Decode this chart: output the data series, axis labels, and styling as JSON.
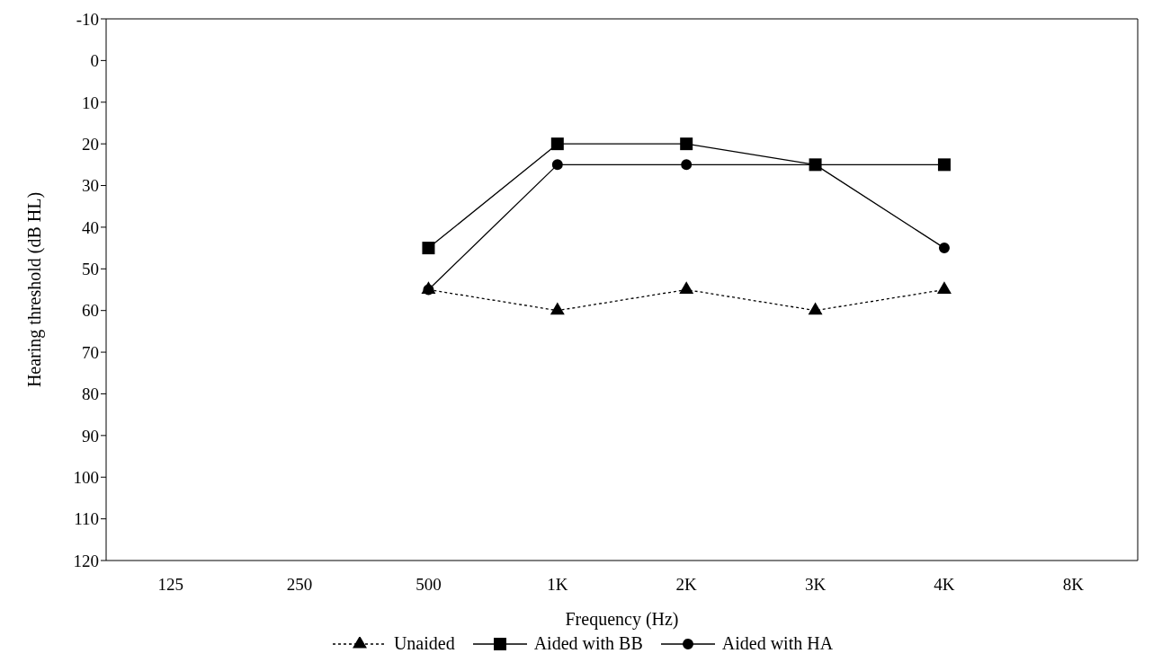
{
  "chart_data": {
    "type": "line",
    "xlabel": "Frequency (Hz)",
    "ylabel": "Hearing threshold (dB HL)",
    "categories": [
      "125",
      "250",
      "500",
      "1K",
      "2K",
      "3K",
      "4K",
      "8K"
    ],
    "ylim": [
      120,
      -10
    ],
    "yticks": [
      -10,
      0,
      10,
      20,
      30,
      40,
      50,
      60,
      70,
      80,
      90,
      100,
      110,
      120
    ],
    "grid": false,
    "legend": "bottom",
    "series": [
      {
        "name": "Unaided",
        "color": "#000000",
        "marker": "triangle",
        "line_style": "dotted",
        "values": [
          null,
          null,
          55,
          60,
          55,
          60,
          55,
          null
        ]
      },
      {
        "name": "Aided with BB",
        "color": "#000000",
        "marker": "square",
        "line_style": "solid",
        "values": [
          null,
          null,
          45,
          20,
          20,
          25,
          25,
          null
        ]
      },
      {
        "name": "Aided with HA",
        "color": "#000000",
        "marker": "circle",
        "line_style": "solid",
        "values": [
          null,
          null,
          55,
          25,
          25,
          25,
          45,
          null
        ]
      }
    ]
  }
}
